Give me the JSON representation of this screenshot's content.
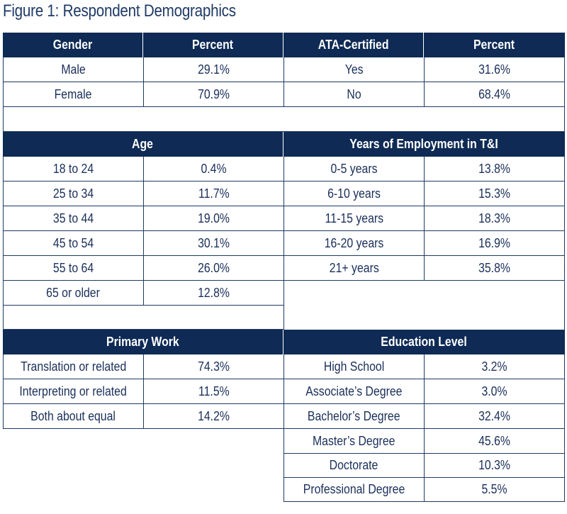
{
  "title": "Figure 1: Respondent Demographics",
  "gender": {
    "headers": [
      "Gender",
      "Percent"
    ],
    "rows": [
      [
        "Male",
        "29.1%"
      ],
      [
        "Female",
        "70.9%"
      ]
    ]
  },
  "ata": {
    "headers": [
      "ATA-Certified",
      "Percent"
    ],
    "rows": [
      [
        "Yes",
        "31.6%"
      ],
      [
        "No",
        "68.4%"
      ]
    ]
  },
  "age": {
    "header": "Age",
    "rows": [
      [
        "18 to 24",
        "0.4%"
      ],
      [
        "25 to 34",
        "11.7%"
      ],
      [
        "35 to 44",
        "19.0%"
      ],
      [
        "45 to 54",
        "30.1%"
      ],
      [
        "55 to 64",
        "26.0%"
      ],
      [
        "65 or older",
        "12.8%"
      ]
    ]
  },
  "employment": {
    "header": "Years of Employment in T&I",
    "rows": [
      [
        "0-5 years",
        "13.8%"
      ],
      [
        "6-10 years",
        "15.3%"
      ],
      [
        "11-15 years",
        "18.3%"
      ],
      [
        "16-20 years",
        "16.9%"
      ],
      [
        "21+ years",
        "35.8%"
      ]
    ]
  },
  "primary_work": {
    "header": "Primary Work",
    "rows": [
      [
        "Translation or related",
        "74.3%"
      ],
      [
        "Interpreting or related",
        "11.5%"
      ],
      [
        "Both about equal",
        "14.2%"
      ]
    ]
  },
  "education": {
    "header": "Education Level",
    "rows": [
      [
        "High School",
        "3.2%"
      ],
      [
        "Associate’s Degree",
        "3.0%"
      ],
      [
        "Bachelor’s Degree",
        "32.4%"
      ],
      [
        "Master’s Degree",
        "45.6%"
      ],
      [
        "Doctorate",
        "10.3%"
      ],
      [
        "Professional Degree",
        "5.5%"
      ]
    ]
  },
  "colors": {
    "header_bg": "#0e2a55",
    "header_text": "#ffffff",
    "text": "#1a2f5a",
    "border": "#1e3a66"
  }
}
